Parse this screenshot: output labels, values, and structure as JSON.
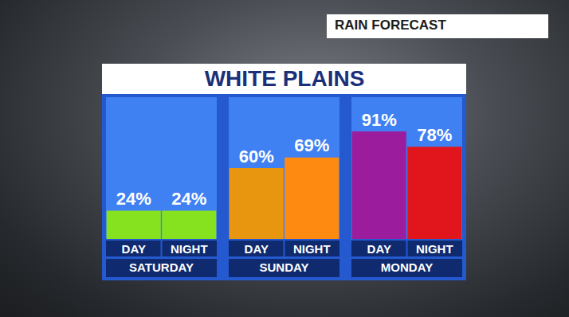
{
  "header": "RAIN FORECAST",
  "title": "WHITE PLAINS",
  "chart_data": [
    {
      "type": "bar",
      "xlabel": "SATURDAY",
      "categories": [
        "DAY",
        "NIGHT"
      ],
      "values": [
        24,
        24
      ],
      "value_labels": [
        "24%",
        "24%"
      ],
      "colors": [
        "#86e21f",
        "#86e21f"
      ],
      "ylim": [
        0,
        120
      ],
      "data_labels": true,
      "tick_labels": "x",
      "grid": false
    },
    {
      "type": "bar",
      "xlabel": "SUNDAY",
      "categories": [
        "DAY",
        "NIGHT"
      ],
      "values": [
        60,
        69
      ],
      "value_labels": [
        "60%",
        "69%"
      ],
      "colors": [
        "#e8950f",
        "#ff8a12"
      ],
      "ylim": [
        0,
        120
      ],
      "data_labels": true,
      "tick_labels": "x",
      "grid": false
    },
    {
      "type": "bar",
      "xlabel": "MONDAY",
      "categories": [
        "DAY",
        "NIGHT"
      ],
      "values": [
        91,
        78
      ],
      "value_labels": [
        "91%",
        "78%"
      ],
      "colors": [
        "#9c1c9e",
        "#e0161c"
      ],
      "ylim": [
        0,
        120
      ],
      "data_labels": true,
      "tick_labels": "x",
      "grid": false
    }
  ]
}
